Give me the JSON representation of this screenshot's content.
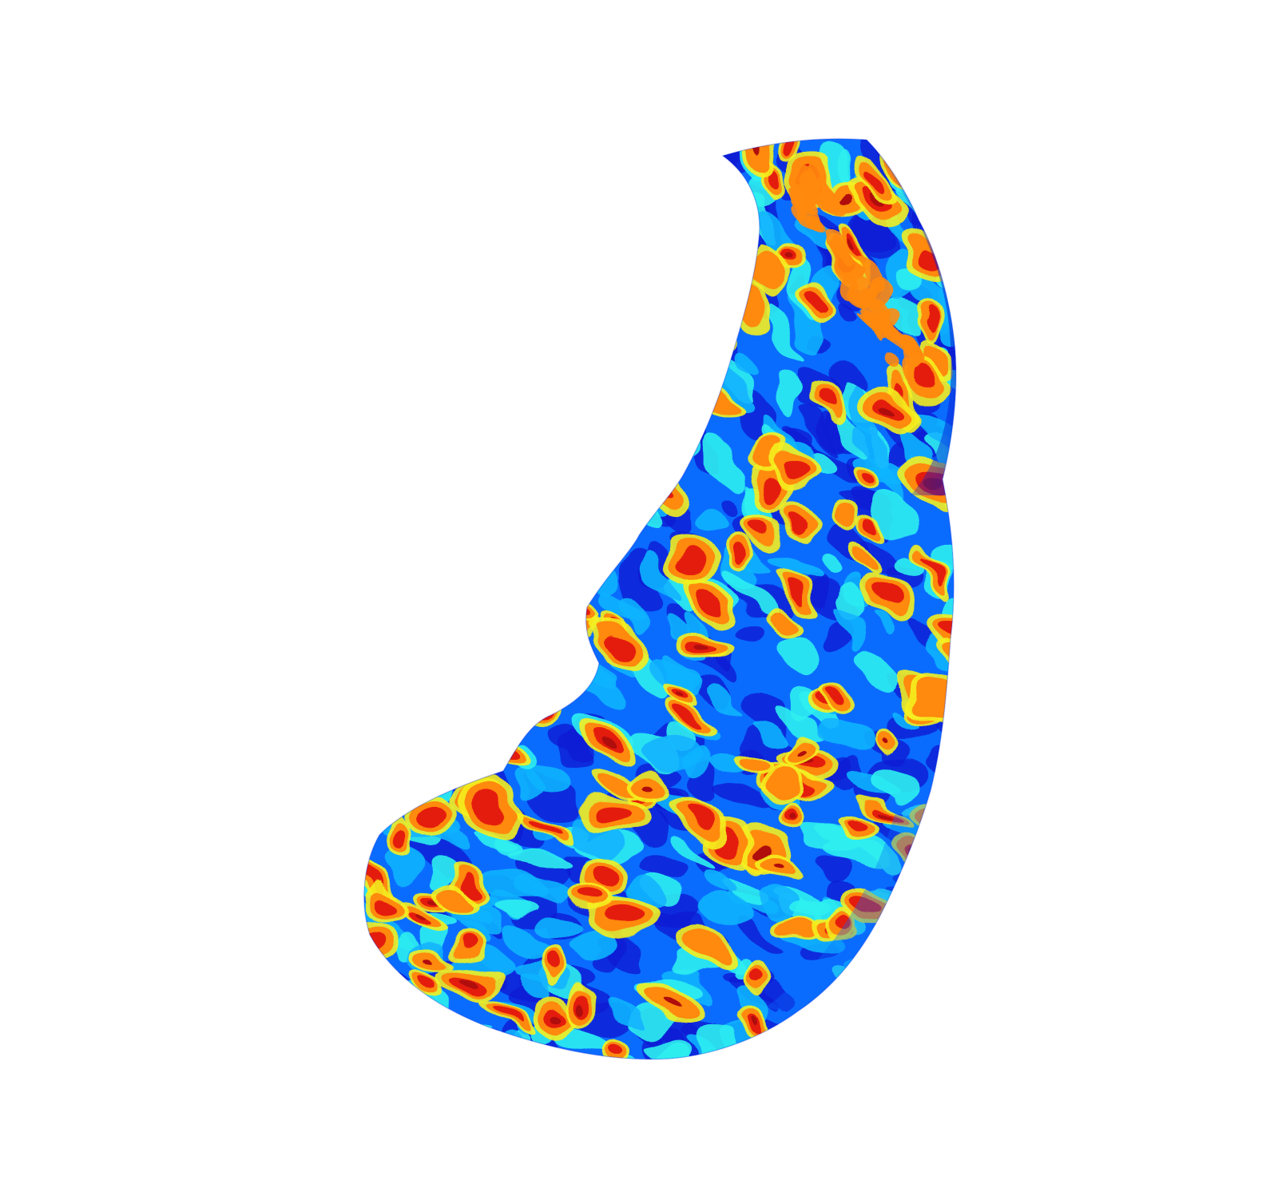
{
  "figure": {
    "kind": "3d-surface-render",
    "colormap": "jet",
    "background_color": "#ffffff",
    "colors": {
      "dark_blue": "#0a1ed6",
      "blue": "#0a6cff",
      "light_blue": "#12b4ff",
      "cyan": "#2ff0f0",
      "yellow": "#f4f020",
      "orange": "#ff8a10",
      "red": "#e41a0c",
      "dark_red": "#b00a0a"
    }
  }
}
